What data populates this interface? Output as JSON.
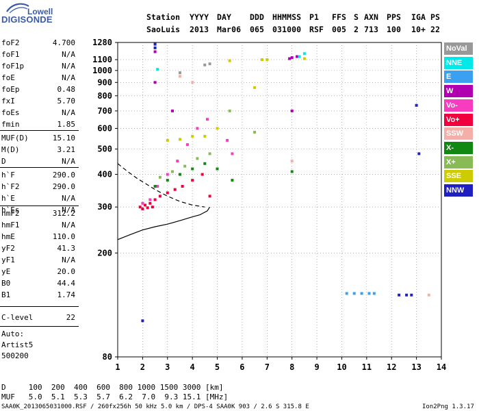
{
  "logo": {
    "line1": "Lowell",
    "line2": "DIGISONDE"
  },
  "header": {
    "labels": [
      "Station",
      "YYYY",
      "DAY",
      "DDD",
      "HHMMSS",
      "P1",
      "FFS",
      "S",
      "AXN",
      "PPS",
      "IGA",
      "PS"
    ],
    "values": [
      "SaoLuis",
      "2013",
      "Mar06",
      "065",
      "031000",
      "RSF",
      "005",
      "2",
      "713",
      "100",
      "10+",
      "22"
    ]
  },
  "params_a": [
    {
      "name": "foF2",
      "value": "4.700"
    },
    {
      "name": "foF1",
      "value": "N/A"
    },
    {
      "name": "foF1p",
      "value": "N/A"
    },
    {
      "name": "foE",
      "value": "N/A"
    },
    {
      "name": "foEp",
      "value": "0.48"
    },
    {
      "name": "fxI",
      "value": "5.70"
    },
    {
      "name": "foEs",
      "value": "N/A"
    },
    {
      "name": "fmin",
      "value": "1.85"
    }
  ],
  "params_b": [
    {
      "name": "MUF(D)",
      "value": "15.10"
    },
    {
      "name": "M(D)",
      "value": "3.21"
    },
    {
      "name": "D",
      "value": "N/A"
    }
  ],
  "params_c": [
    {
      "name": "h`F",
      "value": "290.0"
    },
    {
      "name": "h`F2",
      "value": "290.0"
    },
    {
      "name": "h`E",
      "value": "N/A"
    },
    {
      "name": "h`Es",
      "value": "N/A"
    }
  ],
  "params_d": [
    {
      "name": "hmF2",
      "value": "312.2"
    },
    {
      "name": "hmF1",
      "value": "N/A"
    },
    {
      "name": "hmE",
      "value": "110.0"
    },
    {
      "name": "yF2",
      "value": "41.3"
    },
    {
      "name": "yF1",
      "value": "N/A"
    },
    {
      "name": "yE",
      "value": "20.0"
    },
    {
      "name": "B0",
      "value": "44.4"
    },
    {
      "name": "B1",
      "value": "1.74"
    }
  ],
  "clevel": {
    "name": "C-level",
    "value": "22"
  },
  "notes": [
    "Auto:",
    "Artist5",
    "500200"
  ],
  "legend": [
    {
      "label": "NoVal",
      "color": "#999999"
    },
    {
      "label": "NNE",
      "color": "#00e8e8"
    },
    {
      "label": "E",
      "color": "#3aa0ef"
    },
    {
      "label": "W",
      "color": "#b000b0"
    },
    {
      "label": "Vo-",
      "color": "#f83cc0"
    },
    {
      "label": "Vo+",
      "color": "#f0003c"
    },
    {
      "label": "SSW",
      "color": "#f4b0a8"
    },
    {
      "label": "X-",
      "color": "#118811"
    },
    {
      "label": "X+",
      "color": "#88bb55"
    },
    {
      "label": "SSE",
      "color": "#cccc00"
    },
    {
      "label": "NNW",
      "color": "#2020c0"
    }
  ],
  "bottom": {
    "d_row": "D     100  200  400  600  800 1000 1500 3000 [km]",
    "muf_row": "MUF   5.0  5.1  5.3  5.7  6.2  7.0  9.3 15.1 [MHz]",
    "footer_left": "SAA0K_2013065031000.RSF / 260fx256h 50 kHz 5.0 km / DPS-4 SAA0K 903 / 2.6 S 315.8 E",
    "footer_right": "Ion2Png 1.3.17"
  },
  "chart_data": {
    "type": "scatter",
    "xlim": [
      1,
      14
    ],
    "ylim": [
      80,
      1280
    ],
    "x_ticks": [
      1,
      2,
      3,
      4,
      5,
      6,
      7,
      8,
      9,
      10,
      11,
      12,
      13,
      14
    ],
    "y_ticks": [
      80,
      200,
      300,
      400,
      500,
      600,
      700,
      800,
      900,
      1000,
      1100,
      1280
    ],
    "y_scale": "log",
    "grid": "dotted",
    "legend_position": "right",
    "series": [
      {
        "name": "Vo+",
        "color": "#f0003c",
        "points": [
          [
            1.9,
            300
          ],
          [
            2.0,
            295
          ],
          [
            2.1,
            305
          ],
          [
            2.2,
            298
          ],
          [
            2.3,
            310
          ],
          [
            2.4,
            300
          ],
          [
            2.5,
            320
          ],
          [
            2.7,
            330
          ],
          [
            3.0,
            340
          ],
          [
            3.3,
            350
          ],
          [
            3.6,
            360
          ],
          [
            4.0,
            380
          ],
          [
            4.4,
            400
          ],
          [
            4.7,
            330
          ]
        ]
      },
      {
        "name": "Vo-",
        "color": "#f83cc0",
        "points": [
          [
            2.0,
            310
          ],
          [
            2.3,
            320
          ],
          [
            2.6,
            360
          ],
          [
            3.0,
            400
          ],
          [
            3.4,
            450
          ],
          [
            3.8,
            520
          ],
          [
            4.2,
            600
          ],
          [
            4.6,
            650
          ],
          [
            5.4,
            540
          ],
          [
            5.6,
            480
          ]
        ]
      },
      {
        "name": "X-",
        "color": "#118811",
        "points": [
          [
            2.5,
            360
          ],
          [
            3.0,
            380
          ],
          [
            3.5,
            400
          ],
          [
            4.0,
            420
          ],
          [
            4.5,
            440
          ],
          [
            5.0,
            420
          ],
          [
            5.6,
            380
          ],
          [
            8.0,
            410
          ]
        ]
      },
      {
        "name": "X+",
        "color": "#88bb55",
        "points": [
          [
            2.7,
            390
          ],
          [
            3.2,
            410
          ],
          [
            3.7,
            430
          ],
          [
            4.2,
            460
          ],
          [
            4.7,
            480
          ],
          [
            5.5,
            700
          ],
          [
            6.5,
            580
          ]
        ]
      },
      {
        "name": "SSE",
        "color": "#cccc00",
        "points": [
          [
            3.0,
            540
          ],
          [
            3.5,
            545
          ],
          [
            4.0,
            560
          ],
          [
            4.5,
            560
          ],
          [
            5.0,
            600
          ],
          [
            5.5,
            1090
          ],
          [
            6.5,
            860
          ],
          [
            6.8,
            1100
          ],
          [
            7.0,
            1100
          ],
          [
            8.5,
            1110
          ]
        ]
      },
      {
        "name": "W",
        "color": "#b000b0",
        "points": [
          [
            2.5,
            1180
          ],
          [
            2.5,
            900
          ],
          [
            3.2,
            700
          ],
          [
            7.9,
            1110
          ],
          [
            8.0,
            1120
          ],
          [
            8.2,
            1130
          ],
          [
            8.0,
            700
          ]
        ]
      },
      {
        "name": "NNE",
        "color": "#00e8e8",
        "points": [
          [
            8.3,
            1130
          ],
          [
            8.5,
            1160
          ],
          [
            2.6,
            1010
          ]
        ]
      },
      {
        "name": "E",
        "color": "#3aa0ef",
        "points": [
          [
            10.2,
            140
          ],
          [
            10.5,
            140
          ],
          [
            10.8,
            140
          ],
          [
            11.1,
            140
          ],
          [
            11.3,
            140
          ]
        ]
      },
      {
        "name": "NNW",
        "color": "#2020c0",
        "points": [
          [
            2.5,
            1260
          ],
          [
            2.5,
            1220
          ],
          [
            2.0,
            110
          ],
          [
            12.3,
            138
          ],
          [
            12.6,
            138
          ],
          [
            12.8,
            138
          ],
          [
            13.0,
            735
          ],
          [
            13.1,
            480
          ]
        ]
      },
      {
        "name": "SSW",
        "color": "#f4b0a8",
        "points": [
          [
            3.5,
            950
          ],
          [
            4.0,
            900
          ],
          [
            8.0,
            450
          ],
          [
            13.5,
            138
          ]
        ]
      },
      {
        "name": "NoVal",
        "color": "#999999",
        "points": [
          [
            3.5,
            980
          ],
          [
            4.5,
            1050
          ],
          [
            4.7,
            1060
          ]
        ]
      }
    ],
    "curves": {
      "virtual_height_profile": [
        [
          1.0,
          225
        ],
        [
          1.5,
          235
        ],
        [
          2.0,
          245
        ],
        [
          2.5,
          252
        ],
        [
          3.0,
          258
        ],
        [
          3.5,
          266
        ],
        [
          4.0,
          275
        ],
        [
          4.3,
          280
        ],
        [
          4.6,
          290
        ],
        [
          4.7,
          300
        ]
      ],
      "dashed_profile": [
        [
          1.0,
          440
        ],
        [
          1.4,
          410
        ],
        [
          1.8,
          385
        ],
        [
          2.1,
          370
        ],
        [
          2.5,
          350
        ],
        [
          3.0,
          330
        ],
        [
          3.5,
          315
        ],
        [
          4.0,
          305
        ],
        [
          4.5,
          300
        ]
      ]
    }
  }
}
